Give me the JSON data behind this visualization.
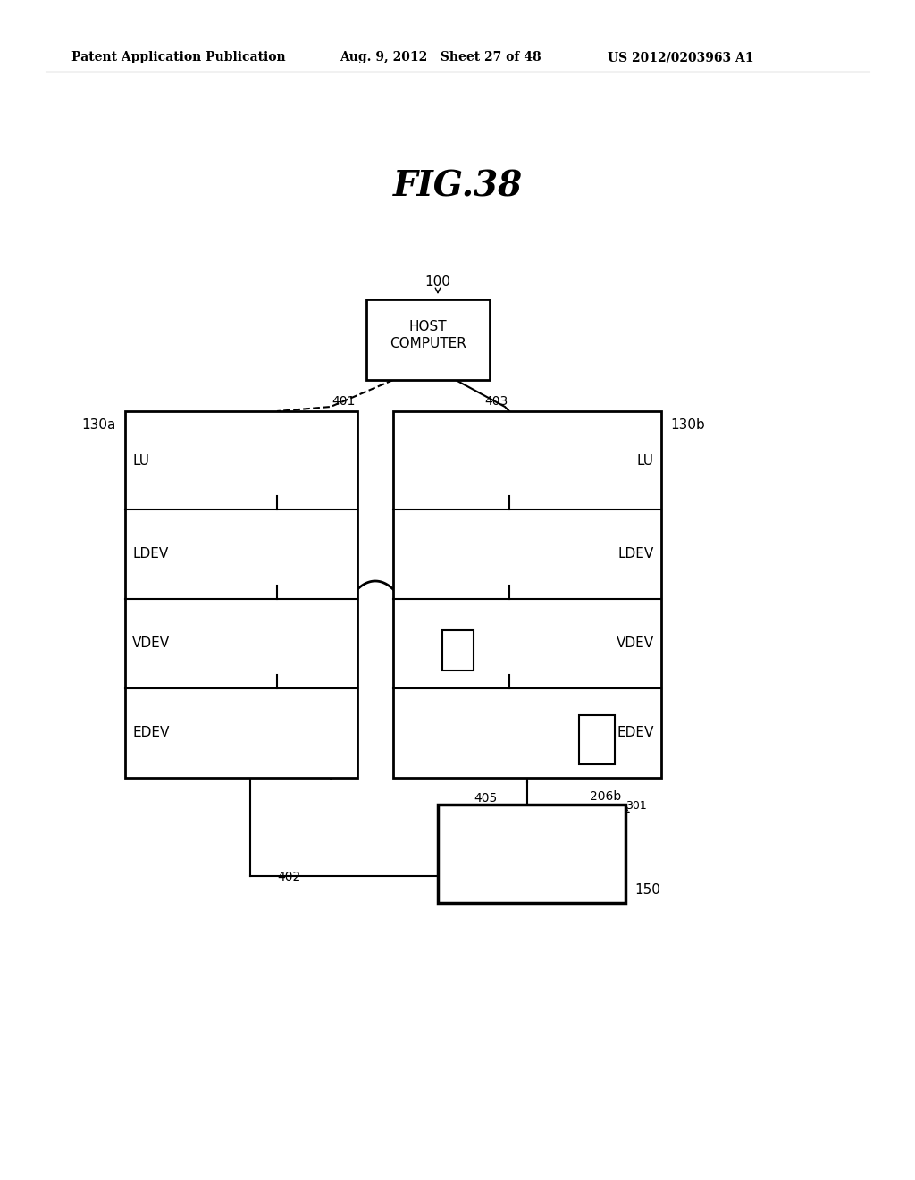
{
  "fig_title": "FIG.38",
  "header_left": "Patent Application Publication",
  "header_mid": "Aug. 9, 2012   Sheet 27 of 48",
  "header_right": "US 2012/0203963 A1",
  "bg_color": "#ffffff",
  "text_color": "#000000"
}
